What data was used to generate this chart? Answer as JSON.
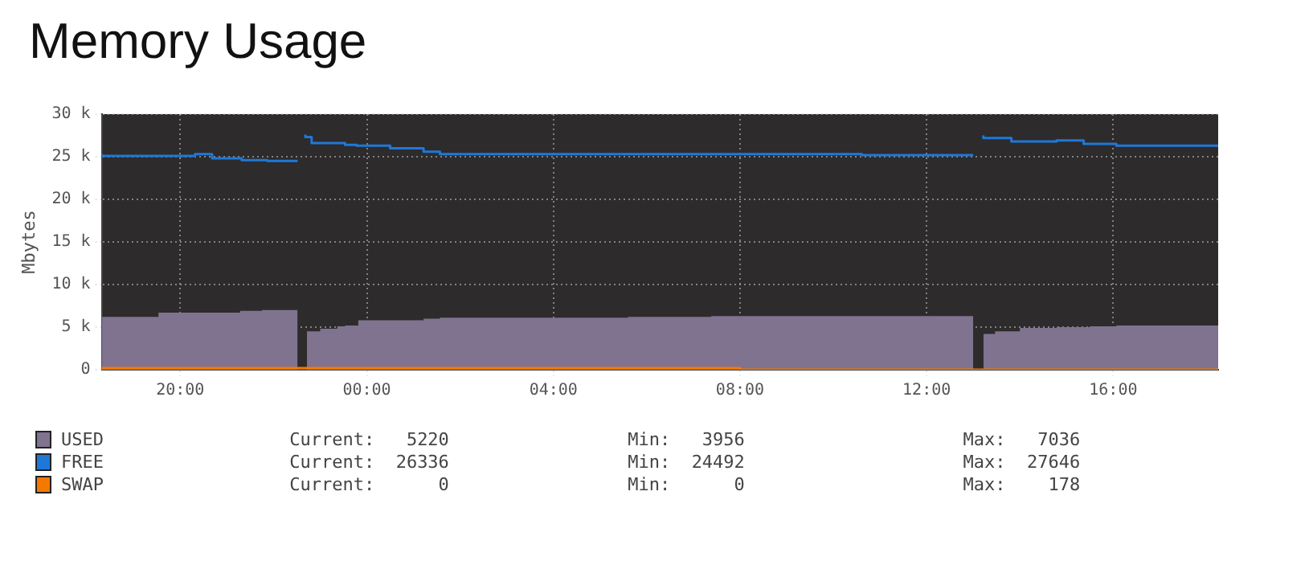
{
  "chart_data": {
    "type": "step",
    "title": "Memory Usage",
    "ylabel": "Mbytes",
    "xlim": [
      "2000-01-01T18:19",
      "2000-01-02T18:15"
    ],
    "xticks": [
      {
        "value": "2000-01-01T20:00",
        "label": "20:00"
      },
      {
        "value": "2000-01-02T00:00",
        "label": "00:00"
      },
      {
        "value": "2000-01-02T04:00",
        "label": "04:00"
      },
      {
        "value": "2000-01-02T08:00",
        "label": "08:00"
      },
      {
        "value": "2000-01-02T12:00",
        "label": "12:00"
      },
      {
        "value": "2000-01-02T16:00",
        "label": "16:00"
      }
    ],
    "ylim": [
      0,
      30000
    ],
    "yticks": [
      {
        "value": 0,
        "label": "0"
      },
      {
        "value": 5000,
        "label": "5 k"
      },
      {
        "value": 10000,
        "label": "10 k"
      },
      {
        "value": 15000,
        "label": "15 k"
      },
      {
        "value": 20000,
        "label": "20 k"
      },
      {
        "value": 25000,
        "label": "25 k"
      },
      {
        "value": 30000,
        "label": "30 k"
      }
    ],
    "grid": true,
    "legend": "bottom",
    "series": [
      {
        "name": "USED",
        "type": "area",
        "color": "#7f7390",
        "x": [
          "2000-01-01T18:19",
          "2000-01-01T19:32",
          "2000-01-01T21:17",
          "2000-01-01T21:45",
          "2000-01-01T22:17",
          "2000-01-01T22:31",
          "2000-01-01T22:32",
          "2000-01-01T22:43",
          "2000-01-01T23:00",
          "2000-01-01T23:22",
          "2000-01-01T23:32",
          "2000-01-01T23:49",
          "2000-01-02T01:13",
          "2000-01-02T01:34",
          "2000-01-02T05:36",
          "2000-01-02T07:23",
          "2000-01-02T09:32",
          "2000-01-02T13:00",
          "2000-01-02T13:02",
          "2000-01-02T13:13",
          "2000-01-02T13:28",
          "2000-01-02T14:00",
          "2000-01-02T14:47",
          "2000-01-02T15:30",
          "2000-01-02T16:04",
          "2000-01-02T17:23",
          "2000-01-02T18:15"
        ],
        "values": [
          6000,
          6200,
          6700,
          6900,
          7000,
          7000,
          null,
          4100,
          4500,
          4800,
          5100,
          5200,
          5800,
          6000,
          6100,
          6200,
          6300,
          6300,
          null,
          4000,
          4200,
          4500,
          4900,
          5000,
          5100,
          5200,
          5200
        ]
      },
      {
        "name": "FREE",
        "color": "#1f78d8",
        "x": [
          "2000-01-01T18:19",
          "2000-01-01T20:19",
          "2000-01-01T20:41",
          "2000-01-01T21:19",
          "2000-01-01T21:52",
          "2000-01-01T22:19",
          "2000-01-01T22:31",
          "2000-01-01T22:32",
          "2000-01-01T22:41",
          "2000-01-01T22:49",
          "2000-01-01T23:32",
          "2000-01-01T23:47",
          "2000-01-02T00:30",
          "2000-01-02T01:13",
          "2000-01-02T01:34",
          "2000-01-02T10:37",
          "2000-01-02T11:19",
          "2000-01-02T13:00",
          "2000-01-02T13:02",
          "2000-01-02T13:13",
          "2000-01-02T13:49",
          "2000-01-02T14:47",
          "2000-01-02T15:22",
          "2000-01-02T16:04",
          "2000-01-02T16:41",
          "2000-01-02T18:15"
        ],
        "values": [
          25300,
          25100,
          25300,
          24800,
          24600,
          24500,
          24500,
          null,
          27600,
          27300,
          26600,
          26400,
          26300,
          26000,
          25600,
          25300,
          25200,
          25200,
          null,
          27500,
          27200,
          26800,
          26900,
          26500,
          26300,
          26300
        ]
      },
      {
        "name": "SWAP",
        "color": "#f57900",
        "x": [
          "2000-01-01T18:19",
          "2000-01-02T08:00",
          "2000-01-02T13:00",
          "2000-01-02T18:15"
        ],
        "values": [
          0,
          200,
          0,
          0
        ]
      }
    ],
    "annotations": [
      "Current:   5220",
      "Min:   3956",
      "Max:   7036",
      "Current:  26336",
      "Min:  24492",
      "Max:  27646",
      "Current:      0",
      "Min:      0",
      "Max:    178"
    ]
  }
}
